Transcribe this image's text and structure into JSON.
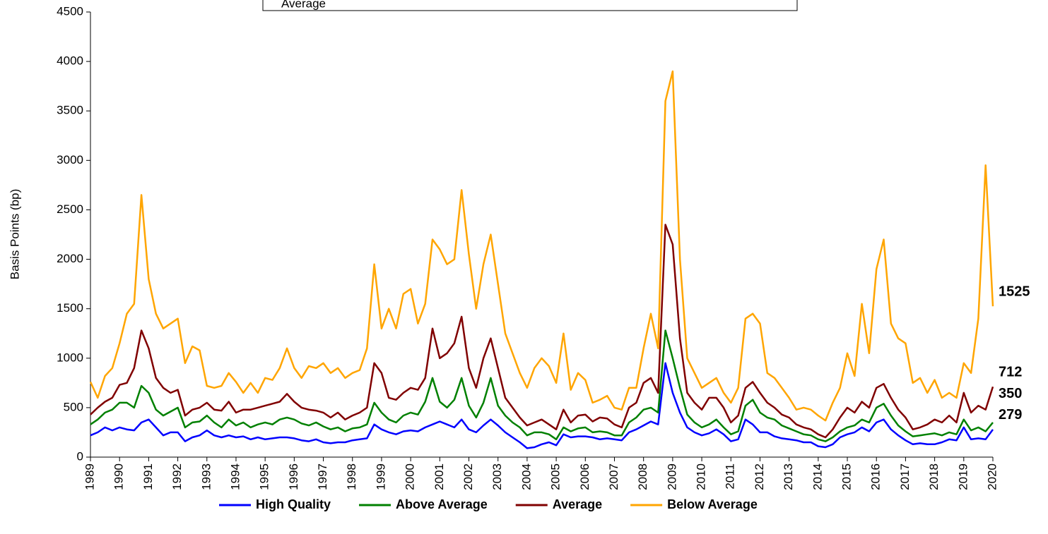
{
  "chart_data": {
    "type": "line",
    "annotation": "Average",
    "y_label": "Basis Points (bp)",
    "xlim": [
      1989,
      2020
    ],
    "ylim": [
      0,
      4500
    ],
    "yticks": [
      0,
      500,
      1000,
      1500,
      2000,
      2500,
      3000,
      3500,
      4000,
      4500
    ],
    "xticks": [
      1989,
      1990,
      1991,
      1992,
      1993,
      1994,
      1995,
      1996,
      1997,
      1998,
      1999,
      2000,
      2001,
      2002,
      2003,
      2004,
      2005,
      2006,
      2007,
      2008,
      2009,
      2010,
      2011,
      2012,
      2013,
      2014,
      2015,
      2016,
      2017,
      2018,
      2019,
      2020
    ],
    "legend": "bottom",
    "x": [
      1989,
      1989.25,
      1989.5,
      1989.75,
      1990,
      1990.25,
      1990.5,
      1990.75,
      1991,
      1991.25,
      1991.5,
      1991.75,
      1992,
      1992.25,
      1992.5,
      1992.75,
      1993,
      1993.25,
      1993.5,
      1993.75,
      1994,
      1994.25,
      1994.5,
      1994.75,
      1995,
      1995.25,
      1995.5,
      1995.75,
      1996,
      1996.25,
      1996.5,
      1996.75,
      1997,
      1997.25,
      1997.5,
      1997.75,
      1998,
      1998.25,
      1998.5,
      1998.75,
      1999,
      1999.25,
      1999.5,
      1999.75,
      2000,
      2000.25,
      2000.5,
      2000.75,
      2001,
      2001.25,
      2001.5,
      2001.75,
      2002,
      2002.25,
      2002.5,
      2002.75,
      2003,
      2003.25,
      2003.5,
      2003.75,
      2004,
      2004.25,
      2004.5,
      2004.75,
      2005,
      2005.25,
      2005.5,
      2005.75,
      2006,
      2006.25,
      2006.5,
      2006.75,
      2007,
      2007.25,
      2007.5,
      2007.75,
      2008,
      2008.25,
      2008.5,
      2008.75,
      2009,
      2009.25,
      2009.5,
      2009.75,
      2010,
      2010.25,
      2010.5,
      2010.75,
      2011,
      2011.25,
      2011.5,
      2011.75,
      2012,
      2012.25,
      2012.5,
      2012.75,
      2013,
      2013.25,
      2013.5,
      2013.75,
      2014,
      2014.25,
      2014.5,
      2014.75,
      2015,
      2015.25,
      2015.5,
      2015.75,
      2016,
      2016.25,
      2016.5,
      2016.75,
      2017,
      2017.25,
      2017.5,
      2017.75,
      2018,
      2018.25,
      2018.5,
      2018.75,
      2019,
      2019.25,
      2019.5,
      2019.75,
      2020
    ],
    "series": [
      {
        "name": "High Quality",
        "color": "#0000ff",
        "values": [
          220,
          250,
          300,
          270,
          300,
          280,
          270,
          350,
          380,
          300,
          220,
          250,
          250,
          160,
          200,
          220,
          270,
          220,
          200,
          220,
          200,
          210,
          180,
          200,
          180,
          190,
          200,
          200,
          190,
          170,
          160,
          180,
          150,
          140,
          150,
          150,
          170,
          180,
          190,
          330,
          280,
          250,
          230,
          260,
          270,
          260,
          300,
          330,
          360,
          330,
          300,
          380,
          280,
          250,
          320,
          380,
          320,
          250,
          200,
          150,
          90,
          100,
          130,
          150,
          120,
          230,
          200,
          210,
          210,
          200,
          180,
          190,
          180,
          170,
          250,
          280,
          320,
          360,
          330,
          950,
          650,
          450,
          300,
          250,
          220,
          240,
          280,
          230,
          160,
          180,
          380,
          330,
          250,
          250,
          210,
          190,
          180,
          170,
          150,
          150,
          110,
          100,
          130,
          200,
          230,
          250,
          300,
          260,
          350,
          380,
          280,
          220,
          170,
          130,
          140,
          130,
          130,
          150,
          180,
          170,
          300,
          180,
          190,
          180,
          279
        ]
      },
      {
        "name": "Above Average",
        "color": "#008000",
        "values": [
          330,
          380,
          450,
          480,
          550,
          550,
          500,
          720,
          650,
          480,
          420,
          460,
          500,
          300,
          350,
          360,
          420,
          350,
          300,
          380,
          320,
          350,
          300,
          330,
          350,
          330,
          380,
          400,
          380,
          340,
          320,
          350,
          310,
          280,
          300,
          260,
          290,
          300,
          330,
          550,
          450,
          380,
          350,
          420,
          450,
          430,
          560,
          800,
          560,
          500,
          580,
          800,
          520,
          400,
          550,
          800,
          520,
          420,
          350,
          300,
          220,
          250,
          250,
          230,
          180,
          300,
          260,
          290,
          300,
          250,
          260,
          250,
          220,
          220,
          350,
          400,
          480,
          500,
          450,
          1280,
          1000,
          700,
          430,
          350,
          300,
          330,
          380,
          300,
          230,
          260,
          520,
          580,
          450,
          400,
          380,
          320,
          290,
          260,
          230,
          220,
          180,
          160,
          200,
          260,
          300,
          320,
          380,
          350,
          500,
          540,
          420,
          320,
          260,
          210,
          220,
          230,
          240,
          220,
          250,
          230,
          380,
          270,
          300,
          260,
          350
        ]
      },
      {
        "name": "Average",
        "color": "#800000",
        "values": [
          430,
          500,
          560,
          600,
          730,
          750,
          900,
          1280,
          1100,
          800,
          700,
          650,
          680,
          420,
          480,
          500,
          550,
          480,
          470,
          560,
          450,
          480,
          480,
          500,
          520,
          540,
          560,
          640,
          560,
          500,
          480,
          470,
          450,
          400,
          450,
          380,
          420,
          450,
          500,
          950,
          850,
          600,
          580,
          650,
          700,
          680,
          800,
          1300,
          1000,
          1050,
          1150,
          1420,
          900,
          700,
          1000,
          1200,
          900,
          600,
          500,
          400,
          320,
          350,
          380,
          330,
          280,
          480,
          350,
          420,
          430,
          360,
          400,
          390,
          330,
          300,
          500,
          550,
          750,
          800,
          650,
          2350,
          2150,
          1200,
          650,
          550,
          480,
          600,
          600,
          500,
          350,
          420,
          700,
          760,
          650,
          550,
          500,
          430,
          400,
          330,
          300,
          280,
          230,
          200,
          280,
          400,
          500,
          450,
          560,
          500,
          700,
          740,
          600,
          480,
          400,
          280,
          300,
          330,
          380,
          350,
          420,
          350,
          650,
          450,
          520,
          480,
          712
        ]
      },
      {
        "name": "Below Average",
        "color": "#ffa500",
        "values": [
          760,
          600,
          820,
          900,
          1150,
          1450,
          1550,
          2650,
          1800,
          1450,
          1300,
          1350,
          1400,
          950,
          1120,
          1080,
          720,
          700,
          720,
          850,
          760,
          650,
          750,
          650,
          800,
          780,
          900,
          1100,
          900,
          800,
          920,
          900,
          950,
          850,
          900,
          800,
          850,
          880,
          1100,
          1950,
          1300,
          1500,
          1300,
          1650,
          1700,
          1350,
          1550,
          2200,
          2100,
          1950,
          2000,
          2700,
          2050,
          1500,
          1950,
          2250,
          1750,
          1250,
          1050,
          850,
          700,
          900,
          1000,
          920,
          750,
          1250,
          680,
          850,
          780,
          550,
          580,
          620,
          500,
          480,
          700,
          700,
          1100,
          1450,
          1100,
          3600,
          3900,
          2000,
          1000,
          850,
          700,
          750,
          800,
          650,
          550,
          700,
          1400,
          1450,
          1350,
          850,
          800,
          700,
          600,
          480,
          500,
          480,
          420,
          370,
          550,
          700,
          1050,
          820,
          1550,
          1050,
          1900,
          2200,
          1350,
          1200,
          1150,
          750,
          800,
          650,
          780,
          600,
          650,
          600,
          950,
          850,
          1400,
          2950,
          1525
        ]
      }
    ]
  }
}
